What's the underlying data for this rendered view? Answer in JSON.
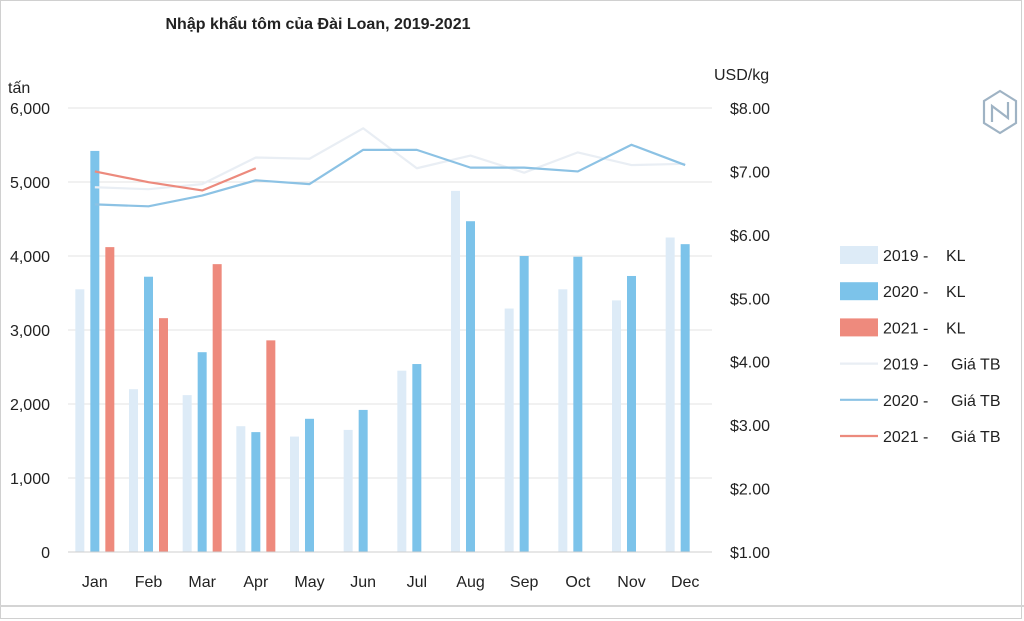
{
  "chart_data": {
    "type": "bar",
    "title": "Nhập khẩu tôm của Đài Loan, 2019-2021",
    "ylabel_left": "tấn",
    "ylabel_right": "USD/kg",
    "categories": [
      "Jan",
      "Feb",
      "Mar",
      "Apr",
      "May",
      "Jun",
      "Jul",
      "Aug",
      "Sep",
      "Oct",
      "Nov",
      "Dec"
    ],
    "ylim_left": [
      0,
      6000
    ],
    "ylim_right": [
      1,
      8
    ],
    "yticks_left": [
      "0",
      "1,000",
      "2,000",
      "3,000",
      "4,000",
      "5,000",
      "6,000"
    ],
    "yticks_right": [
      "$1.00",
      "$2.00",
      "$3.00",
      "$4.00",
      "$5.00",
      "$6.00",
      "$7.00",
      "$8.00"
    ],
    "grid": "horizontal",
    "legend_position": "right",
    "bar_series": [
      {
        "name": "2019 - KL",
        "legend_year": "2019 -",
        "legend_label": "KL",
        "color": "#ddebf7",
        "values": [
          3550,
          2200,
          2120,
          1700,
          1560,
          1650,
          2450,
          4880,
          3290,
          3550,
          3400,
          4250
        ]
      },
      {
        "name": "2020 - KL",
        "legend_year": "2020 -",
        "legend_label": "KL",
        "color": "#7cc3ea",
        "values": [
          5420,
          3720,
          2700,
          1620,
          1800,
          1920,
          2540,
          4470,
          4000,
          3990,
          3730,
          4160
        ]
      },
      {
        "name": "2021 - KL",
        "legend_year": "2021 -",
        "legend_label": "KL",
        "color": "#ee8a7d",
        "values": [
          4120,
          3160,
          3890,
          2860,
          null,
          null,
          null,
          null,
          null,
          null,
          null,
          null
        ]
      }
    ],
    "line_series": [
      {
        "name": "2019 - Giá TB",
        "legend_year": "2019 -",
        "legend_label": "Giá TB",
        "color": "#e9eef4",
        "values": [
          6.75,
          6.72,
          6.8,
          7.22,
          7.2,
          7.68,
          7.05,
          7.25,
          6.98,
          7.3,
          7.1,
          7.12
        ]
      },
      {
        "name": "2020 - Giá TB",
        "legend_year": "2020 -",
        "legend_label": "Giá TB",
        "color": "#8cc2e4",
        "values": [
          6.48,
          6.45,
          6.62,
          6.86,
          6.8,
          7.34,
          7.34,
          7.06,
          7.06,
          7.0,
          7.42,
          7.1
        ]
      },
      {
        "name": "2021 - Giá TB",
        "legend_year": "2021 -",
        "legend_label": "Giá TB",
        "color": "#ec8a7d",
        "values": [
          7.0,
          6.83,
          6.7,
          7.05,
          null,
          null,
          null,
          null,
          null,
          null,
          null,
          null
        ]
      }
    ]
  }
}
